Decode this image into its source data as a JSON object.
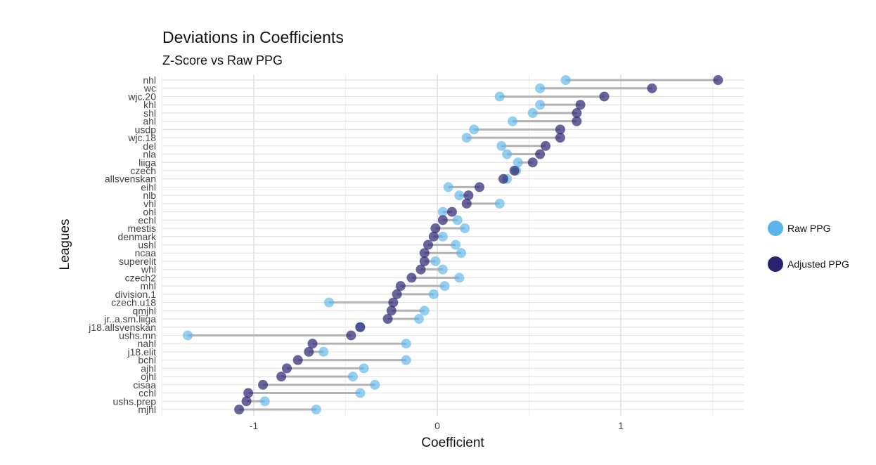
{
  "chart_data": {
    "type": "dumbbell",
    "title": "Deviations in Coefficients",
    "subtitle": "Z-Score vs Raw PPG",
    "xlabel": "Coefficient",
    "ylabel": "Leagues",
    "xlim": [
      -1.5,
      1.67
    ],
    "xticks": [
      -1,
      0,
      1
    ],
    "grid": true,
    "legend_position": "right",
    "colors": {
      "raw": "#5AB4E8",
      "adjusted": "#2A2270",
      "connector": "#B3B3B3"
    },
    "series": [
      {
        "name": "Raw PPG",
        "key": "raw"
      },
      {
        "name": "Adjusted PPG",
        "key": "adjusted"
      }
    ],
    "categories": [
      "nhl",
      "wc",
      "wjc.20",
      "khl",
      "shl",
      "ahl",
      "usdp",
      "wjc.18",
      "del",
      "nla",
      "liiga",
      "czech",
      "allsvenskan",
      "eihl",
      "nlb",
      "vhl",
      "ohl",
      "echl",
      "mestis",
      "denmark",
      "ushl",
      "ncaa",
      "superelit",
      "whl",
      "czech2",
      "mhl",
      "division.1",
      "czech.u18",
      "qmjhl",
      "jr..a.sm.liiga",
      "j18.allsvenskan",
      "ushs.mn",
      "nahl",
      "j18.elit",
      "bchl",
      "ajhl",
      "ojhl",
      "cisaa",
      "cchl",
      "ushs.prep",
      "mjhl"
    ],
    "raw": [
      0.7,
      0.56,
      0.34,
      0.56,
      0.52,
      0.41,
      0.2,
      0.16,
      0.35,
      0.38,
      0.44,
      0.43,
      0.38,
      0.06,
      0.12,
      0.34,
      0.03,
      0.11,
      0.15,
      0.03,
      0.1,
      0.13,
      -0.01,
      0.03,
      0.12,
      0.04,
      -0.02,
      -0.59,
      -0.07,
      -0.1,
      -0.42,
      -1.36,
      -0.17,
      -0.62,
      -0.17,
      -0.4,
      -0.46,
      -0.34,
      -0.42,
      -0.94,
      -0.66
    ],
    "adjusted": [
      1.53,
      1.17,
      0.91,
      0.78,
      0.76,
      0.76,
      0.67,
      0.67,
      0.59,
      0.56,
      0.52,
      0.42,
      0.36,
      0.23,
      0.17,
      0.16,
      0.08,
      0.03,
      -0.01,
      -0.02,
      -0.05,
      -0.07,
      -0.07,
      -0.09,
      -0.14,
      -0.2,
      -0.22,
      -0.24,
      -0.25,
      -0.27,
      -0.42,
      -0.47,
      -0.68,
      -0.7,
      -0.76,
      -0.82,
      -0.85,
      -0.95,
      -1.03,
      -1.04,
      -1.08
    ]
  },
  "legend": {
    "items": [
      {
        "label": "Raw PPG"
      },
      {
        "label": "Adjusted PPG"
      }
    ]
  }
}
